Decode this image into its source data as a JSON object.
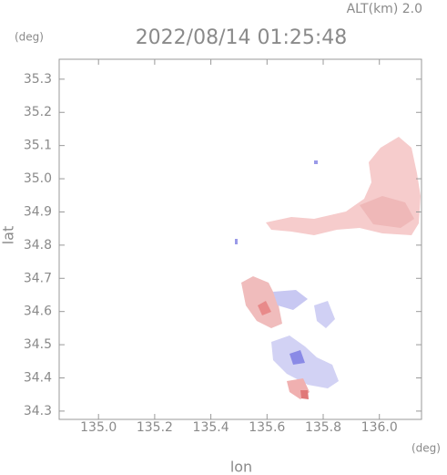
{
  "chart_data": {
    "type": "map",
    "title": "2022/08/14 01:25:48",
    "annotation": "ALT(km) 2.0",
    "x_unit": "(deg)",
    "y_unit": "(deg)",
    "x_label": "lon",
    "y_label": "lat",
    "xlim": [
      134.86,
      136.15
    ],
    "ylim": [
      34.275,
      35.36
    ],
    "xticks": [
      {
        "value": 135,
        "label": "135.0"
      },
      135.2,
      135.4,
      135.6,
      135.8,
      {
        "value": 136,
        "label": "136.0"
      }
    ],
    "yticks": [
      34.3,
      34.4,
      34.5,
      34.6,
      34.7,
      34.8,
      34.9,
      {
        "value": 35,
        "label": "35.0"
      },
      35.1,
      35.2,
      35.3
    ],
    "grid": false
  }
}
